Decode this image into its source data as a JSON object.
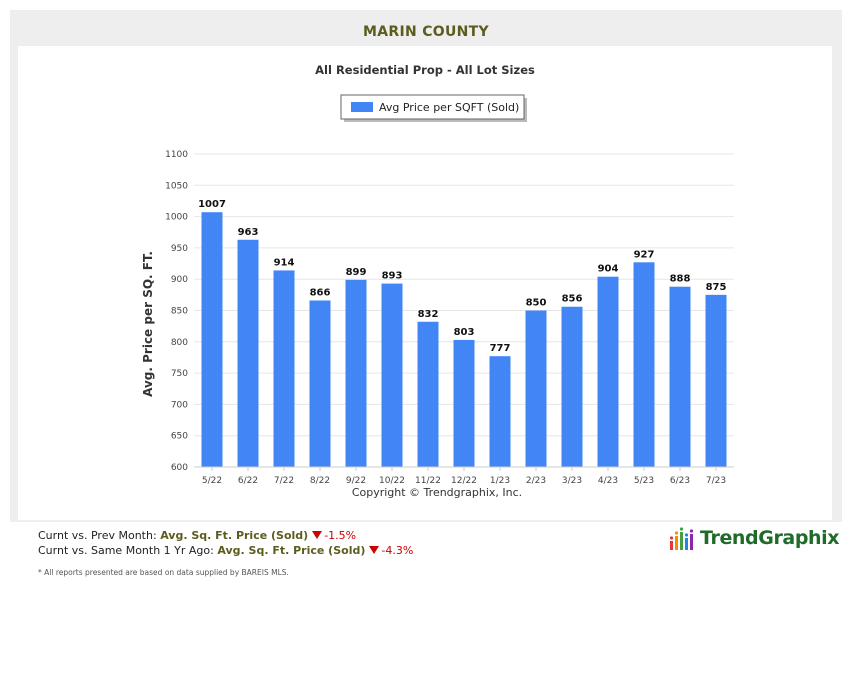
{
  "header": {
    "title": "MARIN COUNTY",
    "subtitle": "All Residential Prop - All Lot Sizes"
  },
  "chart_data": {
    "type": "bar",
    "title": "MARIN COUNTY",
    "subtitle": "All Residential Prop - All Lot Sizes",
    "categories": [
      "5/22",
      "6/22",
      "7/22",
      "8/22",
      "9/22",
      "10/22",
      "11/22",
      "12/22",
      "1/23",
      "2/23",
      "3/23",
      "4/23",
      "5/23",
      "6/23",
      "7/23"
    ],
    "series": [
      {
        "name": "Avg Price per SQFT (Sold)",
        "color": "#4285f4",
        "values": [
          1007,
          963,
          914,
          866,
          899,
          893,
          832,
          803,
          777,
          850,
          856,
          904,
          927,
          888,
          875
        ]
      }
    ],
    "xlabel": "",
    "ylabel": "Avg. Price per SQ. FT.",
    "ylim": [
      600,
      1100
    ],
    "yticks": [
      600,
      650,
      700,
      750,
      800,
      850,
      900,
      950,
      1000,
      1050,
      1100
    ],
    "grid": true,
    "legend_position": "top-center",
    "data_labels": true,
    "copyright": "Copyright © Trendgraphix, Inc."
  },
  "footer": {
    "prev_month_label": "Curnt vs. Prev Month:",
    "prev_month_metric": "Avg. Sq. Ft. Price (Sold)",
    "prev_month_change": "-1.5%",
    "year_ago_label": "Curnt vs. Same Month 1 Yr Ago:",
    "year_ago_metric": "Avg. Sq. Ft. Price (Sold)",
    "year_ago_change": "-4.3%",
    "note": "* All reports presented are based on data supplied by BAREIS MLS."
  },
  "logo": {
    "text": "TrendGraphix",
    "icon": "bar-chart-logo-icon"
  }
}
